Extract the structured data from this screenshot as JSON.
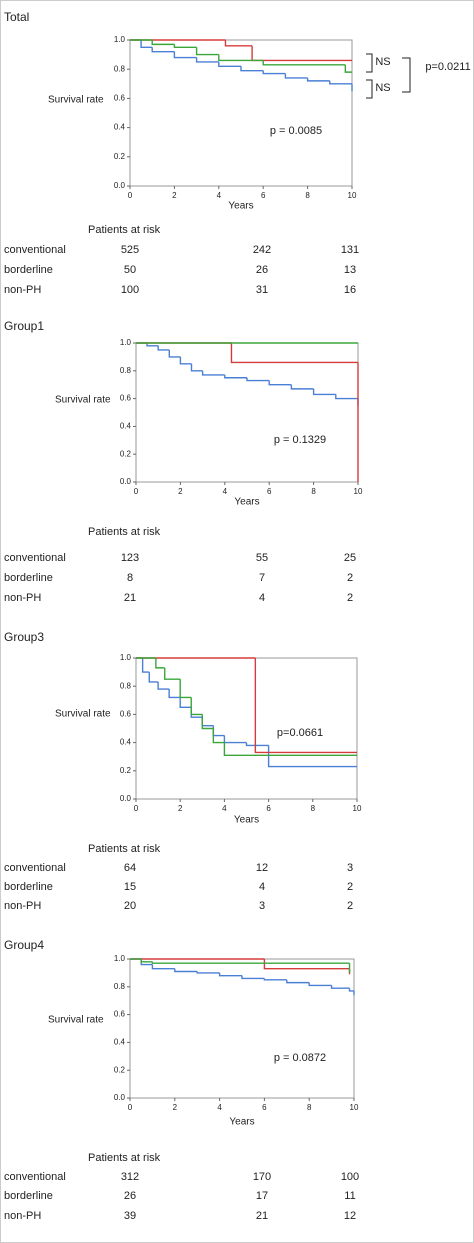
{
  "chart_data": [
    {
      "type": "line",
      "step": true,
      "title": "Total",
      "xlabel": "Years",
      "ylabel": "Survival rate",
      "xlim": [
        0,
        10
      ],
      "ylim": [
        0,
        1
      ],
      "xticks": [
        0,
        2,
        4,
        6,
        8,
        10
      ],
      "yticks": [
        {
          "value": 0,
          "label": "0.0"
        },
        0.2,
        0.4,
        0.6,
        0.8,
        {
          "value": 1,
          "label": "1.0"
        }
      ],
      "risk_title": "Patients at risk",
      "annotations": [
        {
          "text": "p = 0.0085",
          "color": "#e03030"
        },
        {
          "text": "NS",
          "color": "#222222"
        },
        {
          "text": "NS",
          "color": "#222222"
        },
        {
          "text": "p=0.0211",
          "color": "#e03030"
        }
      ],
      "series": [
        {
          "name": "conventional",
          "color": "#4a7fd6",
          "x": [
            0,
            0.5,
            1,
            2,
            3,
            4,
            5,
            6,
            7,
            8,
            9,
            10
          ],
          "values": [
            1,
            0.95,
            0.92,
            0.88,
            0.85,
            0.82,
            0.79,
            0.77,
            0.74,
            0.72,
            0.7,
            0.65
          ],
          "at_risk": [
            525,
            242,
            131
          ]
        },
        {
          "name": "borderline",
          "color": "#d63b3b",
          "x": [
            0,
            4.3,
            5.5,
            10
          ],
          "values": [
            1,
            0.96,
            0.86,
            0.86
          ],
          "at_risk": [
            50,
            26,
            13
          ]
        },
        {
          "name": "non-PH",
          "color": "#3aa63a",
          "x": [
            0,
            1,
            2,
            3,
            4,
            6,
            9.7,
            10
          ],
          "values": [
            1,
            0.97,
            0.95,
            0.9,
            0.86,
            0.83,
            0.78,
            0.78
          ],
          "at_risk": [
            100,
            31,
            16
          ]
        }
      ]
    },
    {
      "type": "line",
      "step": true,
      "title": "Group1",
      "xlabel": "Years",
      "ylabel": "Survival rate",
      "xlim": [
        0,
        10
      ],
      "ylim": [
        0,
        1
      ],
      "xticks": [
        0,
        2,
        4,
        6,
        8,
        10
      ],
      "yticks": [
        {
          "value": 0,
          "label": "0.0"
        },
        0.2,
        0.4,
        0.6,
        0.8,
        {
          "value": 1,
          "label": "1.0"
        }
      ],
      "risk_title": "Patients at risk",
      "annotations": [
        {
          "text": "p = 0.1329",
          "color": "#222222"
        }
      ],
      "series": [
        {
          "name": "conventional",
          "color": "#4a7fd6",
          "x": [
            0,
            0.5,
            1,
            1.5,
            2,
            2.5,
            3,
            4,
            5,
            6,
            7,
            8,
            9,
            10
          ],
          "values": [
            1,
            0.98,
            0.95,
            0.9,
            0.85,
            0.8,
            0.77,
            0.75,
            0.73,
            0.7,
            0.67,
            0.63,
            0.6,
            0.55
          ],
          "at_risk": [
            123,
            55,
            25
          ]
        },
        {
          "name": "borderline",
          "color": "#d63b3b",
          "x": [
            0,
            4.3,
            10
          ],
          "values": [
            1,
            0.86,
            0
          ],
          "at_risk": [
            8,
            7,
            2
          ]
        },
        {
          "name": "non-PH",
          "color": "#3aa63a",
          "x": [
            0,
            10
          ],
          "values": [
            1,
            1
          ],
          "at_risk": [
            21,
            4,
            2
          ]
        }
      ]
    },
    {
      "type": "line",
      "step": true,
      "title": "Group3",
      "xlabel": "Years",
      "ylabel": "Survival rate",
      "xlim": [
        0,
        10
      ],
      "ylim": [
        0,
        1
      ],
      "xticks": [
        0,
        2,
        4,
        6,
        8,
        10
      ],
      "yticks": [
        {
          "value": 0,
          "label": "0.0"
        },
        0.2,
        0.4,
        0.6,
        0.8,
        {
          "value": 1,
          "label": "1.0"
        }
      ],
      "risk_title": "Patients at risk",
      "annotations": [
        {
          "text": "p=0.0661",
          "color": "#222222"
        }
      ],
      "series": [
        {
          "name": "conventional",
          "color": "#4a7fd6",
          "x": [
            0,
            0.3,
            0.6,
            1,
            1.5,
            2,
            2.5,
            3,
            3.5,
            4,
            5,
            6,
            10
          ],
          "values": [
            1,
            0.9,
            0.83,
            0.78,
            0.72,
            0.65,
            0.58,
            0.52,
            0.45,
            0.4,
            0.38,
            0.23,
            0.23
          ],
          "at_risk": [
            64,
            12,
            3
          ]
        },
        {
          "name": "borderline",
          "color": "#d63b3b",
          "x": [
            0,
            5.4,
            10
          ],
          "values": [
            1,
            0.33,
            0.33
          ],
          "at_risk": [
            15,
            4,
            2
          ]
        },
        {
          "name": "non-PH",
          "color": "#3aa63a",
          "x": [
            0,
            0.9,
            1.3,
            2,
            2.5,
            3,
            3.5,
            4,
            10
          ],
          "values": [
            1,
            0.93,
            0.85,
            0.72,
            0.6,
            0.5,
            0.4,
            0.31,
            0.31
          ],
          "at_risk": [
            20,
            3,
            2
          ]
        }
      ]
    },
    {
      "type": "line",
      "step": true,
      "title": "Group4",
      "xlabel": "Years",
      "ylabel": "Survival rate",
      "xlim": [
        0,
        10
      ],
      "ylim": [
        0,
        1
      ],
      "xticks": [
        0,
        2,
        4,
        6,
        8,
        10
      ],
      "yticks": [
        {
          "value": 0,
          "label": "0.0"
        },
        0.2,
        0.4,
        0.6,
        0.8,
        {
          "value": 1,
          "label": "1.0"
        }
      ],
      "risk_title": "Patients at risk",
      "annotations": [
        {
          "text": "p = 0.0872",
          "color": "#222222"
        }
      ],
      "series": [
        {
          "name": "conventional",
          "color": "#4a7fd6",
          "x": [
            0,
            0.5,
            1,
            2,
            3,
            4,
            5,
            6,
            7,
            8,
            9,
            9.8,
            10
          ],
          "values": [
            1,
            0.96,
            0.93,
            0.91,
            0.9,
            0.88,
            0.86,
            0.85,
            0.83,
            0.81,
            0.79,
            0.77,
            0.74
          ],
          "at_risk": [
            312,
            170,
            100
          ]
        },
        {
          "name": "borderline",
          "color": "#d63b3b",
          "x": [
            0,
            6,
            9.8
          ],
          "values": [
            1,
            0.93,
            0.89
          ],
          "at_risk": [
            26,
            17,
            11
          ]
        },
        {
          "name": "non-PH",
          "color": "#3aa63a",
          "x": [
            0,
            0.5,
            1,
            9.8
          ],
          "values": [
            1,
            0.98,
            0.97,
            0.9
          ],
          "at_risk": [
            39,
            21,
            12
          ]
        }
      ]
    }
  ]
}
